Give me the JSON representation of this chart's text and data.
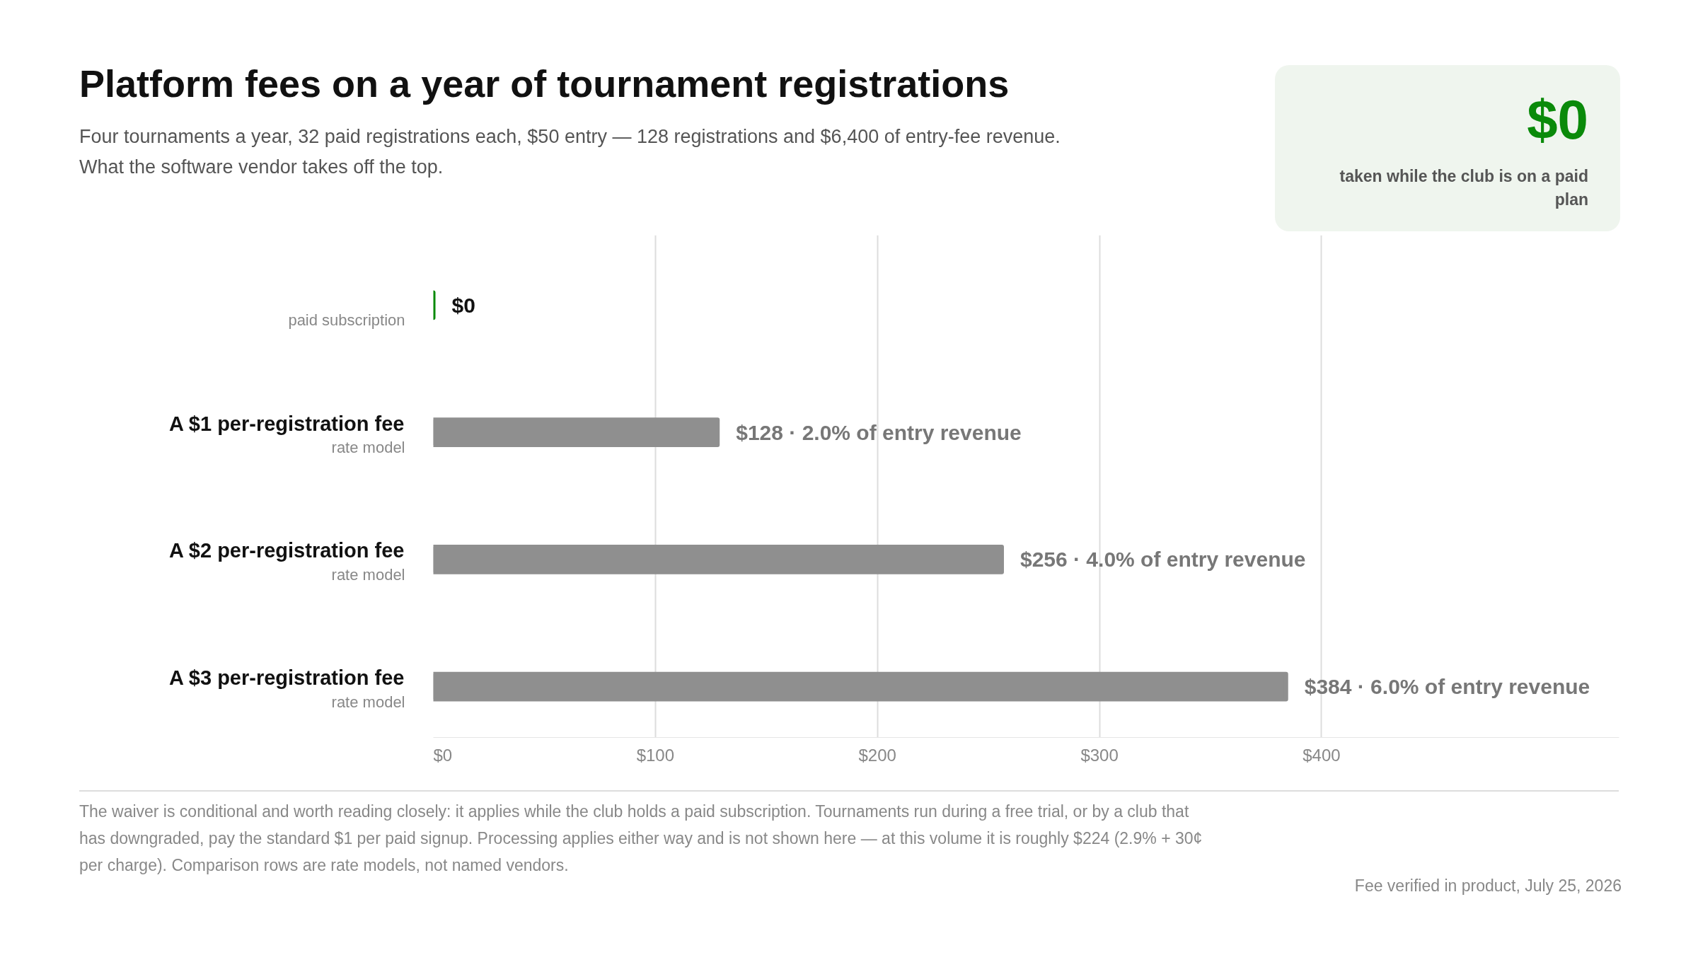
{
  "chart_data": {
    "type": "bar",
    "orientation": "horizontal",
    "title": "Platform fees on a year of tournament registrations",
    "subtitle": "Four tournaments a year, 32 paid registrations each, $50 entry — 128 registrations and $6,400 of entry-fee revenue.\nWhat the software vendor takes off the top.",
    "categories": [
      "paid subscription",
      "A $1 per-registration fee\nrate model",
      "A $2 per-registration fee\nrate model",
      "A $3 per-registration fee\nrate model"
    ],
    "values": [
      0,
      128,
      256,
      384
    ],
    "colors": [
      "#0a8a0a",
      "#8f8f8f",
      "#8f8f8f",
      "#8f8f8f"
    ],
    "value_labels": [
      "$0",
      "$128 · 2.0% of entry revenue",
      "$256 · 4.0% of entry revenue",
      "$384 · 6.0% of entry revenue"
    ],
    "xlim": [
      0,
      534
    ],
    "xticks": [
      {
        "value": 0,
        "label": "$0"
      },
      {
        "value": 100,
        "label": "$100"
      },
      {
        "value": 200,
        "label": "$200"
      },
      {
        "value": 300,
        "label": "$300"
      },
      {
        "value": 400,
        "label": "$400"
      }
    ],
    "grid": "x",
    "annotations": [
      "$0",
      "taken while the club is on a paid plan",
      "The waiver is conditional and worth reading closely: it applies while the club holds a paid subscription. Tournaments run during a free trial, or by a club that has downgraded, pay the standard $1 per paid signup. Processing applies either way and is not shown here — at this volume it is roughly $224 (2.9% + 30¢ per charge). Comparison rows are rate models, not named vendors.",
      "Fee verified in product, July 25, 2026"
    ]
  }
}
